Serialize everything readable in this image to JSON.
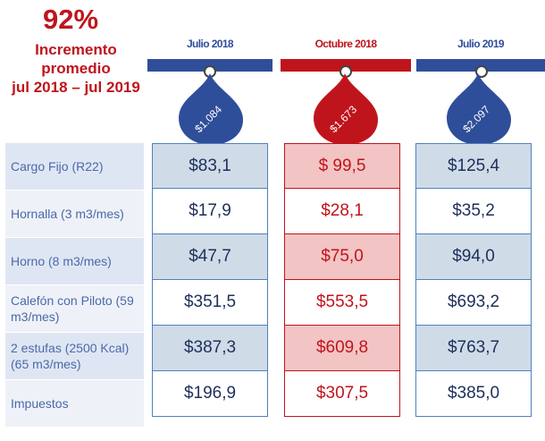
{
  "headline": {
    "percent": "92%",
    "line1": "Incremento",
    "line2": "promedio",
    "line3": "jul 2018 – jul 2019"
  },
  "colors": {
    "blue": "#2f4e9a",
    "red": "#c0141c"
  },
  "columns": [
    {
      "date": "Julio 2018",
      "bubble": "$1.084",
      "values": [
        "$83,1",
        "$17,9",
        "$47,7",
        "$351,5",
        "$387,3",
        "$196,9"
      ]
    },
    {
      "date": "Octubre 2018",
      "bubble": "$1.673",
      "values": [
        "$ 99,5",
        "$28,1",
        "$75,0",
        "$553,5",
        "$609,8",
        "$307,5"
      ]
    },
    {
      "date": "Julio 2019",
      "bubble": "$2.097",
      "values": [
        "$125,4",
        "$35,2",
        "$94,0",
        "$693,2",
        "$763,7",
        "$385,0"
      ]
    }
  ],
  "rows": [
    "Cargo Fijo (R22)",
    "Hornalla (3 m3/mes)",
    "Horno (8 m3/mes)",
    "Calefón con Piloto (59 m3/mes)",
    "2 estufas (2500 Kcal) (65 m3/mes)",
    "Impuestos"
  ]
}
